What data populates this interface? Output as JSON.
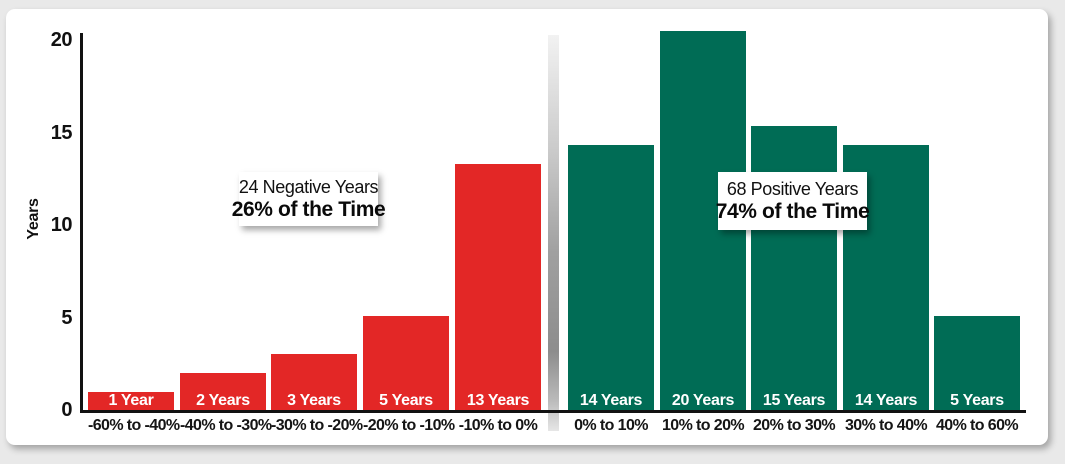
{
  "page": {
    "background_color": "#e9e9e9",
    "card_color": "#ffffff"
  },
  "chart_data": {
    "type": "bar",
    "title": "",
    "xlabel": "",
    "ylabel": "Years",
    "ylim": [
      0,
      20
    ],
    "yticks": [
      "0",
      "5",
      "10",
      "15",
      "20"
    ],
    "grid": false,
    "legend": false,
    "axis_color": "#121212",
    "groups": [
      {
        "name": "negative-years",
        "color": "#e32726",
        "annotation": {
          "line1": "24 Negative Years",
          "line2": "26% of the Time"
        },
        "bars": [
          {
            "category": "-60% to -40%",
            "label": "1 Year",
            "value": 1
          },
          {
            "category": "-40% to -30%",
            "label": "2 Years",
            "value": 2
          },
          {
            "category": "-30% to -20%",
            "label": "3 Years",
            "value": 3
          },
          {
            "category": "-20% to -10%",
            "label": "5 Years",
            "value": 5
          },
          {
            "category": "-10% to 0%",
            "label": "13 Years",
            "value": 13
          }
        ]
      },
      {
        "name": "positive-years",
        "color": "#006c55",
        "annotation": {
          "line1": "68 Positive Years",
          "line2": "74% of the Time"
        },
        "bars": [
          {
            "category": "0% to 10%",
            "label": "14 Years",
            "value": 14
          },
          {
            "category": "10% to 20%",
            "label": "20 Years",
            "value": 20
          },
          {
            "category": "20% to 30%",
            "label": "15 Years",
            "value": 15
          },
          {
            "category": "30% to 40%",
            "label": "14 Years",
            "value": 14
          },
          {
            "category": "40% to 60%",
            "label": "5 Years",
            "value": 5
          }
        ]
      }
    ]
  }
}
